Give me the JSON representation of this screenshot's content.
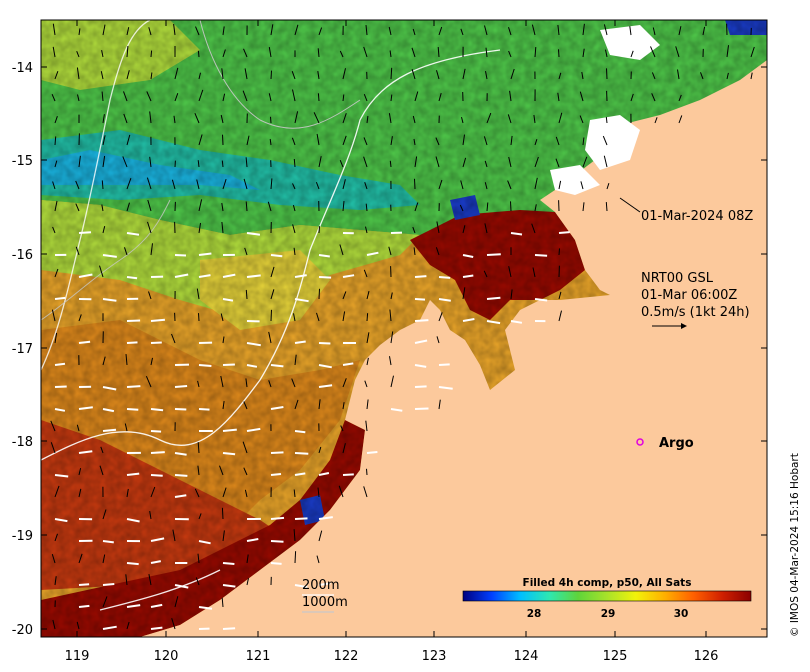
{
  "map": {
    "x_ticks": [
      "119",
      "120",
      "121",
      "122",
      "123",
      "124",
      "125",
      "126"
    ],
    "y_ticks": [
      "-14",
      "-15",
      "-16",
      "-17",
      "-18",
      "-19",
      "-20"
    ],
    "land_color": "#fcc99c",
    "ocean_color": "#ffffff"
  },
  "annotations": {
    "composite_time": "01-Mar-2024 08Z",
    "current_source": "NRT00 GSL",
    "current_time": "01-Mar 06:00Z",
    "current_scale": "0.5m/s (1kt 24h)",
    "argo_label": "Argo",
    "contour_200": "200m",
    "contour_1000": "1000m",
    "credit": "© IMOS 04-Mar-2024 15:16 Hobart"
  },
  "colorbar": {
    "title": "Filled 4h comp, p50, All Sats",
    "ticks": [
      "28",
      "29",
      "30"
    ],
    "colors": [
      "#00007f",
      "#0040ff",
      "#00bfff",
      "#2ee8b0",
      "#5fd43a",
      "#a8e22a",
      "#f2f20a",
      "#ffb000",
      "#ff6000",
      "#d02000",
      "#8b0000"
    ]
  },
  "sst_palette": {
    "dark_red": "#9a0a00",
    "red": "#c83a10",
    "orange": "#e08a1c",
    "amber": "#eba62a",
    "yellow": "#e7d43a",
    "lime": "#b3df3d",
    "green": "#4fc84a",
    "teal": "#22c0a8",
    "cyan": "#1ab4e0",
    "blue": "#1a3cc8"
  }
}
